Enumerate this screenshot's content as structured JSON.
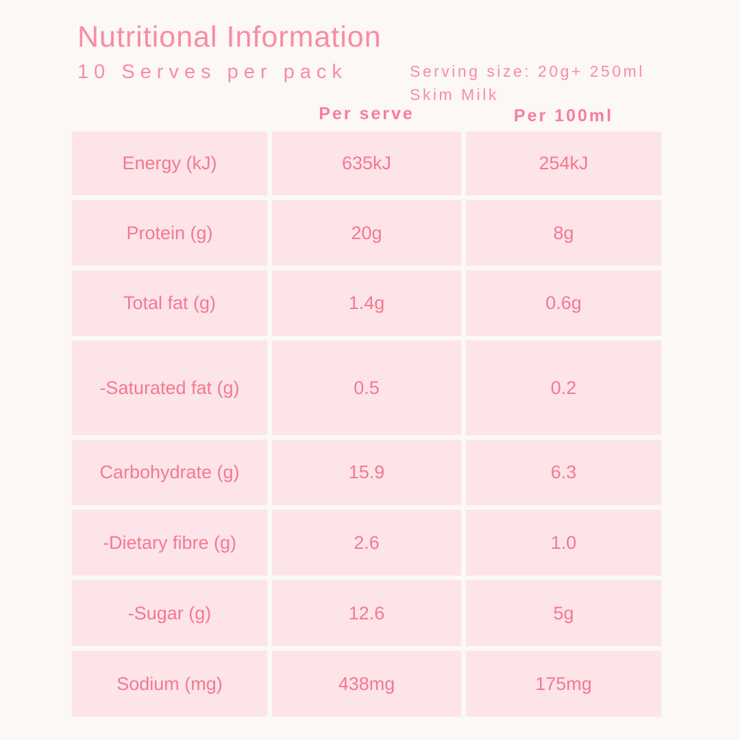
{
  "accent_colors": {
    "title_pink": "#fa8ba3",
    "header_pink": "#f97d99",
    "cell_text_pink": "#f5788f",
    "cell_background": "#fce4e9",
    "page_background": "#fbf8f6"
  },
  "header": {
    "title": "Nutritional Information",
    "serves_per_pack": "10 Serves per pack",
    "serving_size_line1": "Serving size: 20g+ 250ml",
    "serving_size_line2": "Skim Milk"
  },
  "table": {
    "column_headers": {
      "per_serve": "Per serve",
      "per_100ml": "Per 100ml"
    },
    "rows": [
      {
        "label": "Energy (kJ)",
        "per_serve": "635kJ",
        "per_100ml": "254kJ"
      },
      {
        "label": "Protein (g)",
        "per_serve": "20g",
        "per_100ml": "8g"
      },
      {
        "label": "Total fat (g)",
        "per_serve": "1.4g",
        "per_100ml": "0.6g"
      },
      {
        "label": "-Saturated fat (g)",
        "per_serve": "0.5",
        "per_100ml": "0.2"
      },
      {
        "label": "Carbohydrate (g)",
        "per_serve": "15.9",
        "per_100ml": "6.3"
      },
      {
        "label": "-Dietary fibre (g)",
        "per_serve": "2.6",
        "per_100ml": "1.0"
      },
      {
        "label": "-Sugar (g)",
        "per_serve": "12.6",
        "per_100ml": "5g"
      },
      {
        "label": "Sodium (mg)",
        "per_serve": "438mg",
        "per_100ml": "175mg"
      }
    ]
  }
}
